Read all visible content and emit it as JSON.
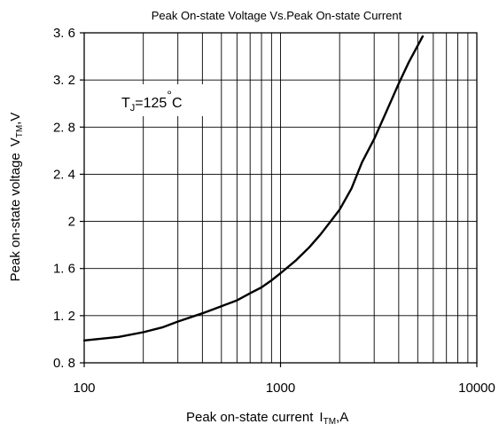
{
  "chart_data": {
    "type": "line",
    "title": "Peak On-state Voltage Vs.Peak On-state Current",
    "xlabel": "Peak on-state current",
    "xlabel_symbol": "I",
    "xlabel_symbol_sub": "TM",
    "xlabel_unit": ",A",
    "ylabel": "Peak on-state voltage",
    "ylabel_symbol": "V",
    "ylabel_symbol_sub": "TM",
    "ylabel_unit": ",V",
    "xscale": "log",
    "xlim": [
      100,
      10000
    ],
    "ylim": [
      0.8,
      3.6
    ],
    "grid": true,
    "x_tick_labels": [
      "100",
      "1000",
      "10000"
    ],
    "y_tick_labels": [
      "0. 8",
      "1. 2",
      "1. 6",
      "2",
      "2. 4",
      "2. 8",
      "3. 2",
      "3. 6"
    ],
    "annotation": {
      "prefix": "T",
      "sub": "J",
      "value": "=125",
      "degree": "°",
      "unit": "C"
    },
    "series": [
      {
        "x": [
          100,
          150,
          200,
          250,
          300,
          400,
          500,
          600,
          700,
          800,
          900,
          1000,
          1200,
          1400,
          1600,
          1800,
          2000,
          2300,
          2600,
          3000,
          3500,
          4000,
          4500,
          5300
        ],
        "y": [
          0.99,
          1.02,
          1.06,
          1.1,
          1.15,
          1.22,
          1.28,
          1.33,
          1.39,
          1.44,
          1.5,
          1.56,
          1.67,
          1.78,
          1.89,
          2.0,
          2.1,
          2.28,
          2.5,
          2.7,
          2.95,
          3.17,
          3.35,
          3.57
        ]
      }
    ]
  }
}
